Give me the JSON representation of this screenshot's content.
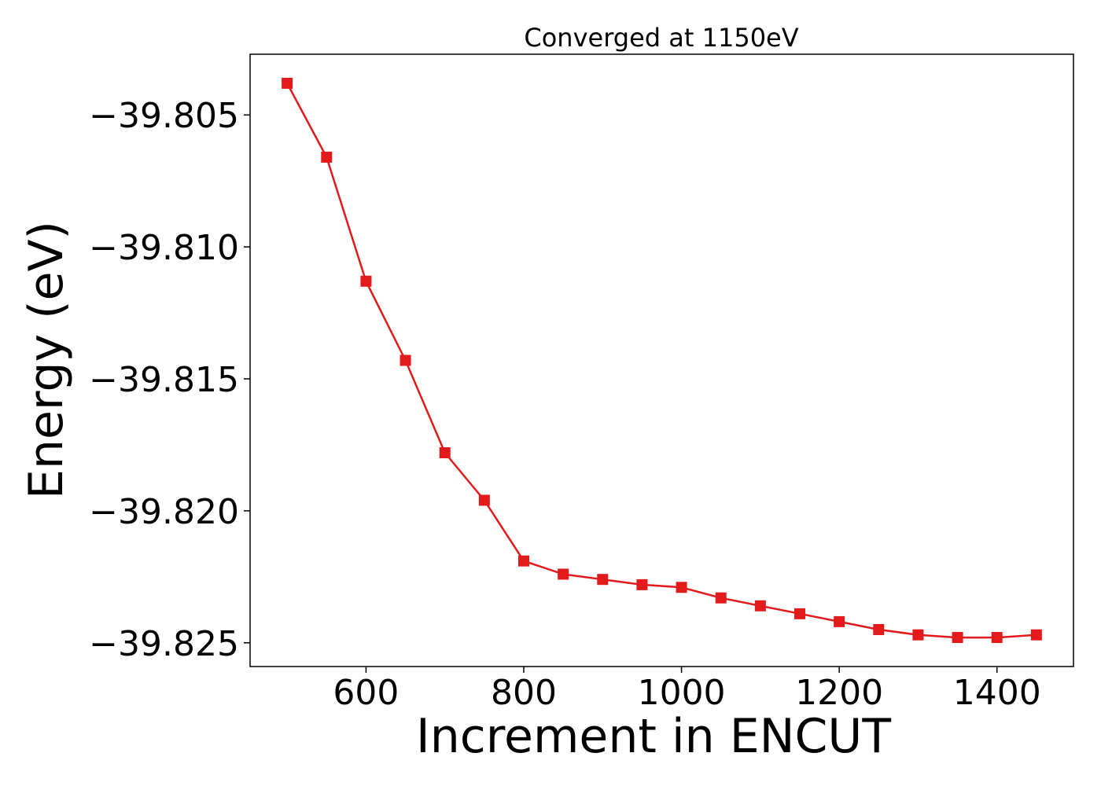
{
  "chart_data": {
    "type": "line",
    "title": "Converged at 1150eV",
    "xlabel": "Increment in ENCUT",
    "ylabel": "Energy (eV)",
    "xlim": [
      453,
      1497
    ],
    "ylim": [
      -39.8259,
      -39.8027
    ],
    "x_ticks": [
      600,
      800,
      1000,
      1200,
      1400
    ],
    "x_tick_labels": [
      "600",
      "800",
      "1000",
      "1200",
      "1400"
    ],
    "y_ticks": [
      -39.805,
      -39.81,
      -39.815,
      -39.82,
      -39.825
    ],
    "y_tick_labels": [
      "−39.805",
      "−39.810",
      "−39.815",
      "−39.820",
      "−39.825"
    ],
    "grid": false,
    "legend": "none",
    "series": [
      {
        "color": "#e31a1c",
        "marker": "square",
        "x": [
          500,
          550,
          600,
          650,
          700,
          750,
          800,
          850,
          900,
          950,
          1000,
          1050,
          1100,
          1150,
          1200,
          1250,
          1300,
          1350,
          1400,
          1450
        ],
        "y": [
          -39.8038,
          -39.8066,
          -39.8113,
          -39.8143,
          -39.8178,
          -39.8196,
          -39.8219,
          -39.8224,
          -39.8226,
          -39.8228,
          -39.8229,
          -39.8233,
          -39.8236,
          -39.8239,
          -39.8242,
          -39.8245,
          -39.8247,
          -39.8248,
          -39.8248,
          -39.8247
        ]
      }
    ]
  }
}
